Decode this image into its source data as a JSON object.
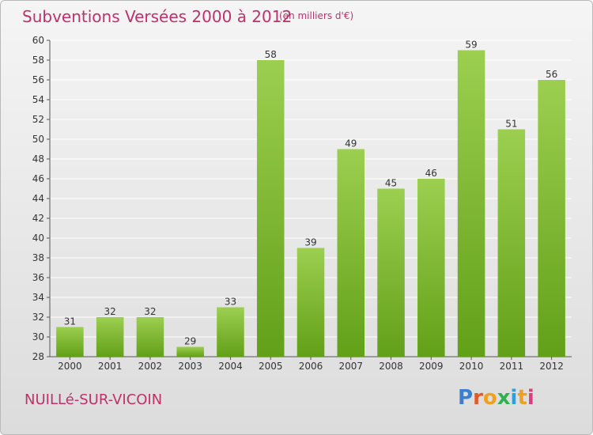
{
  "header": {
    "title": "Subventions Versées 2000 à 2012",
    "unit": "(en milliers d'€)"
  },
  "footer": {
    "commune": "NUILLé-SUR-VICOIN",
    "logo_letters": [
      "P",
      "r",
      "o",
      "x",
      "i",
      "t",
      "i"
    ]
  },
  "colors": {
    "bar_light": "#9ccf50",
    "bar_dark": "#62a018",
    "title": "#c0306a",
    "grid": "#ffffff"
  },
  "chart_data": {
    "type": "bar",
    "title": "Subventions Versées 2000 à 2012",
    "subtitle": "(en milliers d'€)",
    "categories": [
      "2000",
      "2001",
      "2002",
      "2003",
      "2004",
      "2005",
      "2006",
      "2007",
      "2008",
      "2009",
      "2010",
      "2011",
      "2012"
    ],
    "values": [
      31,
      32,
      32,
      29,
      33,
      58,
      39,
      49,
      45,
      46,
      59,
      51,
      56
    ],
    "ylim": [
      28,
      60
    ],
    "yticks": [
      28,
      30,
      32,
      34,
      36,
      38,
      40,
      42,
      44,
      46,
      48,
      50,
      52,
      54,
      56,
      58,
      60
    ],
    "grid": true,
    "xlabel": "",
    "ylabel": ""
  }
}
